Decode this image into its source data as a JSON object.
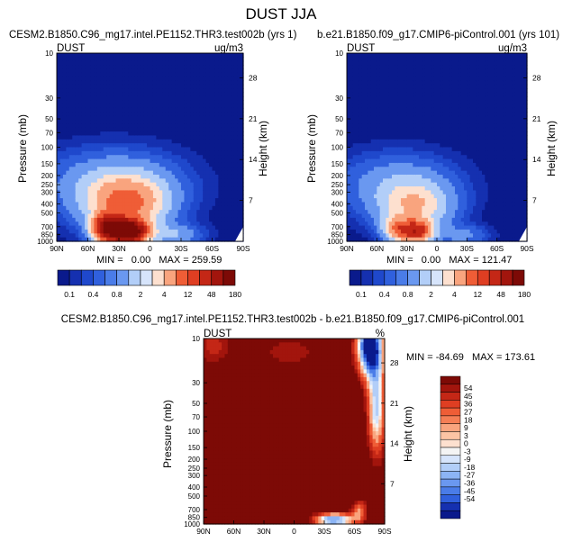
{
  "main_title": "DUST JJA",
  "colors": {
    "blues": [
      "#0a1a8c",
      "#1530b0",
      "#1f48cc",
      "#3060dd",
      "#4a7ce8",
      "#6a98f0",
      "#8cb4f5",
      "#b2cef8",
      "#d6e4fb"
    ],
    "reds": [
      "#fde0cf",
      "#fcc4a4",
      "#f9a47e",
      "#f57e55",
      "#ef5d36",
      "#df3e22",
      "#c42716",
      "#a2150d",
      "#7d0a06"
    ],
    "neutral": "#f4f4f4"
  },
  "chart_data": [
    {
      "type": "heatmap",
      "title": "CESM2.B1850.C96_mg17.intel.PE1152.THR3.test002b (yrs 1)",
      "corner_left": "DUST",
      "corner_right": "ug/m3",
      "xlabel": "",
      "ylabel": "Pressure (mb)",
      "ylabel_right": "Height (km)",
      "x_ticks": [
        "90N",
        "60N",
        "30N",
        "0",
        "30S",
        "60S",
        "90S"
      ],
      "y_ticks": [
        "10",
        "30",
        "50",
        "70",
        "100",
        "150",
        "200",
        "250",
        "300",
        "400",
        "500",
        "700",
        "850",
        "1000"
      ],
      "y_ticks_right": [
        "28",
        "21",
        "14",
        "7"
      ],
      "stats": "MIN =   0.00   MAX = 259.59",
      "min": 0.0,
      "max": 259.59
    },
    {
      "type": "heatmap",
      "title": "b.e21.B1850.f09_g17.CMIP6-piControl.001 (yrs 101)",
      "corner_left": "DUST",
      "corner_right": "ug/m3",
      "xlabel": "",
      "ylabel": "Pressure (mb)",
      "ylabel_right": "Height (km)",
      "x_ticks": [
        "90N",
        "60N",
        "30N",
        "0",
        "30S",
        "60S",
        "90S"
      ],
      "y_ticks": [
        "10",
        "30",
        "50",
        "70",
        "100",
        "150",
        "200",
        "250",
        "300",
        "400",
        "500",
        "700",
        "850",
        "1000"
      ],
      "y_ticks_right": [
        "28",
        "21",
        "14",
        "7"
      ],
      "stats": "MIN =   0.00   MAX = 121.47",
      "min": 0.0,
      "max": 121.47
    },
    {
      "type": "heatmap",
      "title": "CESM2.B1850.C96_mg17.intel.PE1152.THR3.test002b - b.e21.B1850.f09_g17.CMIP6-piControl.001",
      "corner_left": "DUST",
      "corner_right": "%",
      "xlabel": "",
      "ylabel": "Pressure (mb)",
      "ylabel_right": "Height (km)",
      "x_ticks": [
        "90N",
        "60N",
        "30N",
        "0",
        "30S",
        "60S",
        "90S"
      ],
      "y_ticks": [
        "10",
        "30",
        "50",
        "70",
        "100",
        "150",
        "200",
        "250",
        "300",
        "400",
        "500",
        "700",
        "850",
        "1000"
      ],
      "y_ticks_right": [
        "28",
        "21",
        "14",
        "7"
      ],
      "stats": "MIN = -84.69   MAX = 173.61",
      "min": -84.69,
      "max": 173.61
    }
  ],
  "colorbar_top": {
    "labels": [
      "0.1",
      "0.4",
      "0.8",
      "2",
      "4",
      "12",
      "48",
      "180"
    ]
  },
  "colorbar_diff": {
    "labels": [
      "54",
      "45",
      "36",
      "27",
      "18",
      "9",
      "3",
      "0",
      "-3",
      "-9",
      "-18",
      "-27",
      "-36",
      "-45",
      "-54"
    ]
  }
}
